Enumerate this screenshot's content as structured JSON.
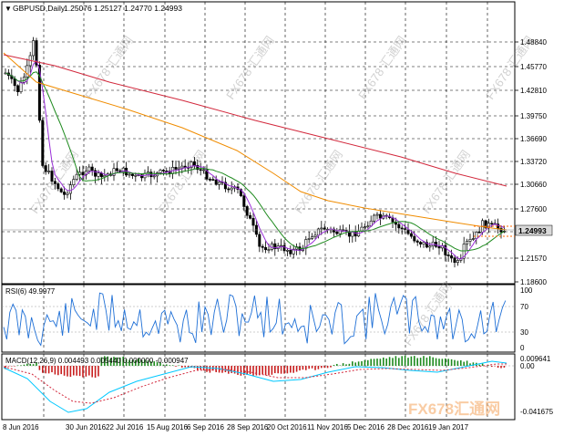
{
  "header": {
    "symbol": "GBPUSD,Daily",
    "ohlc": "1.25076 1.25127 1.24770 1.24993",
    "menu_glyph": "▼"
  },
  "price_axis": {
    "labels": [
      "1.48840",
      "1.45770",
      "1.42810",
      "1.39750",
      "1.36690",
      "1.33720",
      "1.30660",
      "1.27600",
      "1.24993",
      "1.21570",
      "1.18600"
    ],
    "current": "1.24993",
    "extra": "1.24??"
  },
  "rsi": {
    "title": "RSI(6) 49.9977",
    "labels": [
      "100",
      "70",
      "30",
      "0"
    ]
  },
  "macd": {
    "title": "MACD(12,26,9) 0.004493 0.005440 0.000000 -0.000947",
    "labels": [
      "0.009641",
      "0.00",
      "-0.041675"
    ]
  },
  "date_axis": {
    "labels": [
      "8 Jun 2016",
      "30 Jun 2016",
      "22 Jul 2016",
      "15 Aug 2016",
      "6 Sep 2016",
      "28 Sep 2016",
      "20 Oct 2016",
      "11 Nov 2016",
      "5 Dec 2016",
      "28 Dec 2016",
      "19 Jan 2017"
    ]
  },
  "watermarks": {
    "text": "FX678 汇通网",
    "brand": "FX678汇通网"
  },
  "colors": {
    "grid": "#000000",
    "candles": "#000000",
    "ma_fast": "#9b30d9",
    "ma_mid": "#1e8a1e",
    "ma_orange": "#f08c00",
    "ma_red": "#d2283c",
    "rsi_line": "#1e6fd6",
    "macd_up": "#1e8a1e",
    "macd_down": "#c81e1e",
    "macd_signal_red": "#d2283c",
    "macd_line_cyan": "#00c8ff",
    "bid_line": "#ff6a00"
  }
}
